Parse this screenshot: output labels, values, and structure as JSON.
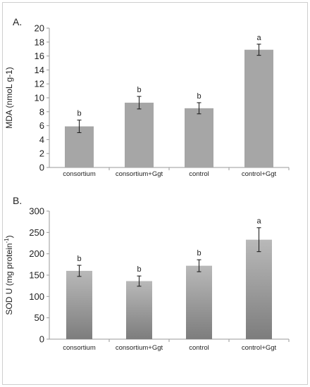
{
  "chart_data": [
    {
      "type": "bar",
      "panel_label": "A.",
      "ylabel": "MDA (nmoL g-1)",
      "categories": [
        "consortium",
        "consortium+Ggt",
        "control",
        "control+Ggt"
      ],
      "values": [
        5.9,
        9.3,
        8.5,
        16.9
      ],
      "errors": [
        0.9,
        0.9,
        0.8,
        0.8
      ],
      "letters": [
        "b",
        "b",
        "b",
        "a"
      ],
      "ylim": [
        0,
        20
      ],
      "yticks": [
        "0",
        "2",
        "4",
        "6",
        "8",
        "10",
        "12",
        "14",
        "16",
        "18",
        "20"
      ],
      "bar_color": "#a6a6a6",
      "bar_style": "flat",
      "grid": false
    },
    {
      "type": "bar",
      "panel_label": "B.",
      "ylabel": "SOD U (mg protein",
      "ylabel_superscript": "-1",
      "ylabel_suffix": ")",
      "categories": [
        "consortium",
        "consortium+Ggt",
        "control",
        "control+Ggt"
      ],
      "values": [
        160,
        136,
        172,
        233
      ],
      "errors": [
        13,
        12,
        14,
        28
      ],
      "letters": [
        "b",
        "b",
        "b",
        "a"
      ],
      "ylim": [
        0,
        300
      ],
      "yticks": [
        "0",
        "50",
        "100",
        "150",
        "200",
        "250",
        "300"
      ],
      "bar_color": "#9d9d9d",
      "bar_style": "gradient",
      "grid": false
    }
  ]
}
